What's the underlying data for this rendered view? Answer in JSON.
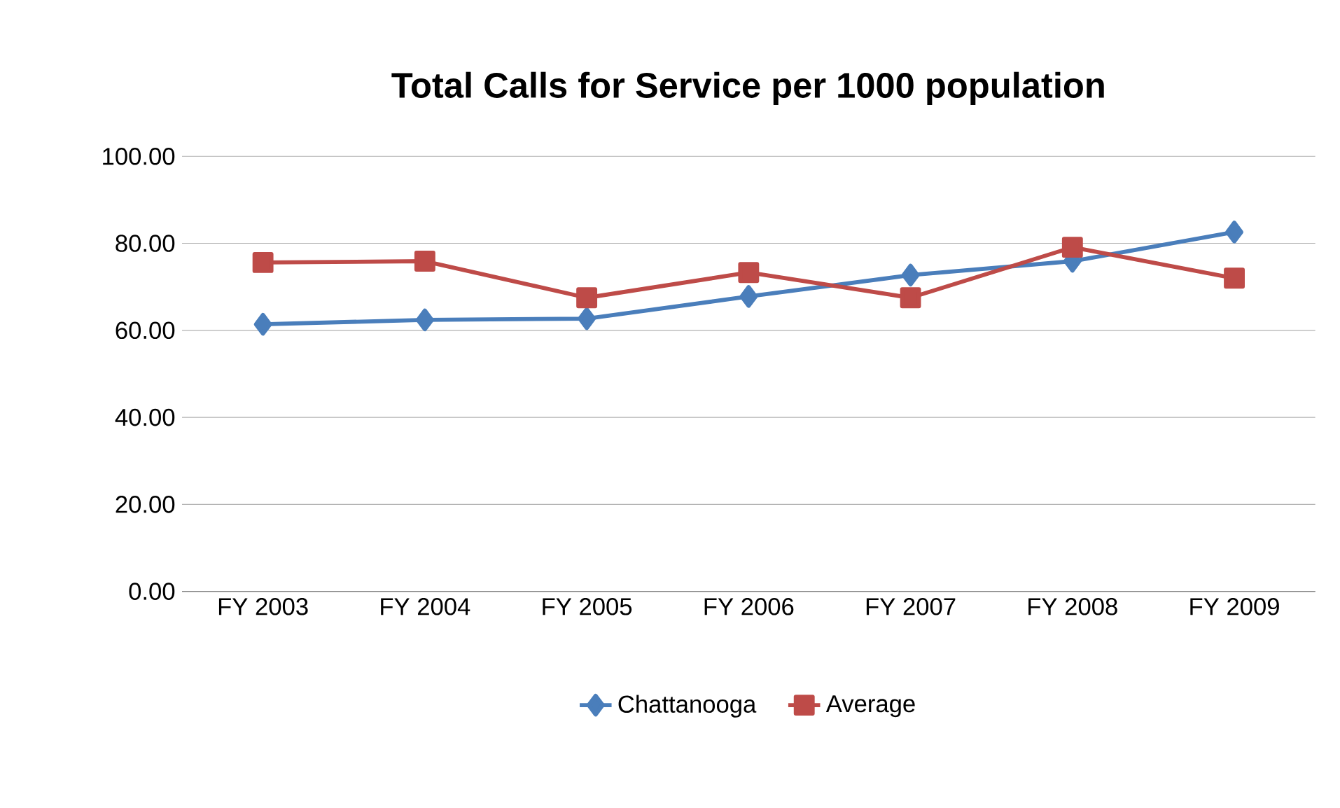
{
  "chart_data": {
    "type": "line",
    "title": "Total Calls for Service per 1000 population",
    "categories": [
      "FY 2003",
      "FY 2004",
      "FY 2005",
      "FY 2006",
      "FY 2007",
      "FY 2008",
      "FY 2009"
    ],
    "series": [
      {
        "name": "Chattanooga",
        "color": "#4a7ebb",
        "marker": "diamond",
        "values": [
          61.4,
          62.4,
          62.7,
          67.8,
          72.7,
          75.9,
          82.6
        ]
      },
      {
        "name": "Average",
        "color": "#be4b48",
        "marker": "square",
        "values": [
          75.6,
          75.9,
          67.5,
          73.3,
          67.5,
          79.1,
          72.0
        ]
      }
    ],
    "ylim": [
      0,
      100
    ],
    "yticks": [
      {
        "value": 0,
        "label": "0.00"
      },
      {
        "value": 20,
        "label": "20.00"
      },
      {
        "value": 40,
        "label": "40.00"
      },
      {
        "value": 60,
        "label": "60.00"
      },
      {
        "value": 80,
        "label": "80.00"
      },
      {
        "value": 100,
        "label": "100.00"
      }
    ],
    "grid": "y",
    "legend": "bottom",
    "line_style": "solid"
  }
}
